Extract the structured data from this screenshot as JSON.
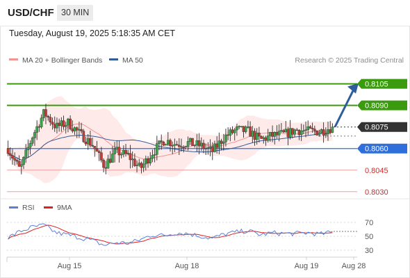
{
  "header": {
    "symbol": "USD/CHF",
    "timeframe": "30 MIN",
    "datetime": "Tuesday, August 19, 2025 5:18:35 AM CET"
  },
  "price_panel": {
    "legend": [
      {
        "label": "MA 20 + Bollinger Bands",
        "color": "#f4938f"
      },
      {
        "label": "MA 50",
        "color": "#2f5c9a"
      }
    ],
    "credit": "Research © 2025 Trading Central"
  },
  "rsi_panel": {
    "legend": [
      {
        "label": "RSI",
        "color": "#5b7fd6"
      },
      {
        "label": "9MA",
        "color": "#e02020"
      }
    ]
  },
  "chart_data": [
    {
      "type": "candlestick",
      "title": "USD/CHF",
      "timeframe": "30 MIN",
      "x_tick_labels": [
        "Aug 15",
        "Aug 18",
        "Aug 19",
        "Aug 28"
      ],
      "ylim": [
        0.8027,
        0.8114
      ],
      "levels": [
        {
          "label": "0.8105",
          "value": 0.8105,
          "kind": "resistance",
          "color": "#3a9b0e"
        },
        {
          "label": "0.8090",
          "value": 0.809,
          "kind": "resistance",
          "color": "#3a9b0e"
        },
        {
          "label": "0.8075",
          "value": 0.8075,
          "kind": "last",
          "color": "#333333"
        },
        {
          "label": "0.8060",
          "value": 0.806,
          "kind": "pivot",
          "color": "#2f6fdc"
        },
        {
          "label": "0.8045",
          "value": 0.8045,
          "kind": "support",
          "color": "#d02a2a"
        },
        {
          "label": "0.8030",
          "value": 0.803,
          "kind": "support",
          "color": "#d02a2a"
        }
      ],
      "anchors": [
        0.806,
        0.8045,
        0.8068,
        0.8085,
        0.8075,
        0.8078,
        0.807,
        0.8063,
        0.8048,
        0.8058,
        0.8055,
        0.8046,
        0.8057,
        0.8066,
        0.8063,
        0.8064,
        0.8062,
        0.8058,
        0.8068,
        0.8073,
        0.8072,
        0.8066,
        0.8069,
        0.807,
        0.8073,
        0.8072,
        0.8072,
        0.8075
      ],
      "series": [
        {
          "name": "MA 20 + Bollinger Bands",
          "color": "#f4938f"
        },
        {
          "name": "MA 50",
          "color": "#2f5c9a"
        }
      ],
      "forecast": {
        "from": 0.8075,
        "to": 0.8105,
        "color": "#2f5c9a"
      }
    },
    {
      "type": "line",
      "title": "RSI",
      "yticks": [
        70,
        50,
        30
      ],
      "ylim": [
        22,
        78
      ],
      "rsi_anchors": [
        48,
        57,
        63,
        66,
        55,
        52,
        48,
        44,
        37,
        41,
        40,
        45,
        52,
        51,
        55,
        54,
        50,
        47,
        53,
        56,
        58,
        52,
        55,
        54,
        54,
        55,
        53,
        56
      ],
      "series": [
        {
          "name": "RSI",
          "color": "#5b7fd6"
        },
        {
          "name": "9MA",
          "color": "#e02020"
        }
      ],
      "reference_level": 57
    }
  ]
}
